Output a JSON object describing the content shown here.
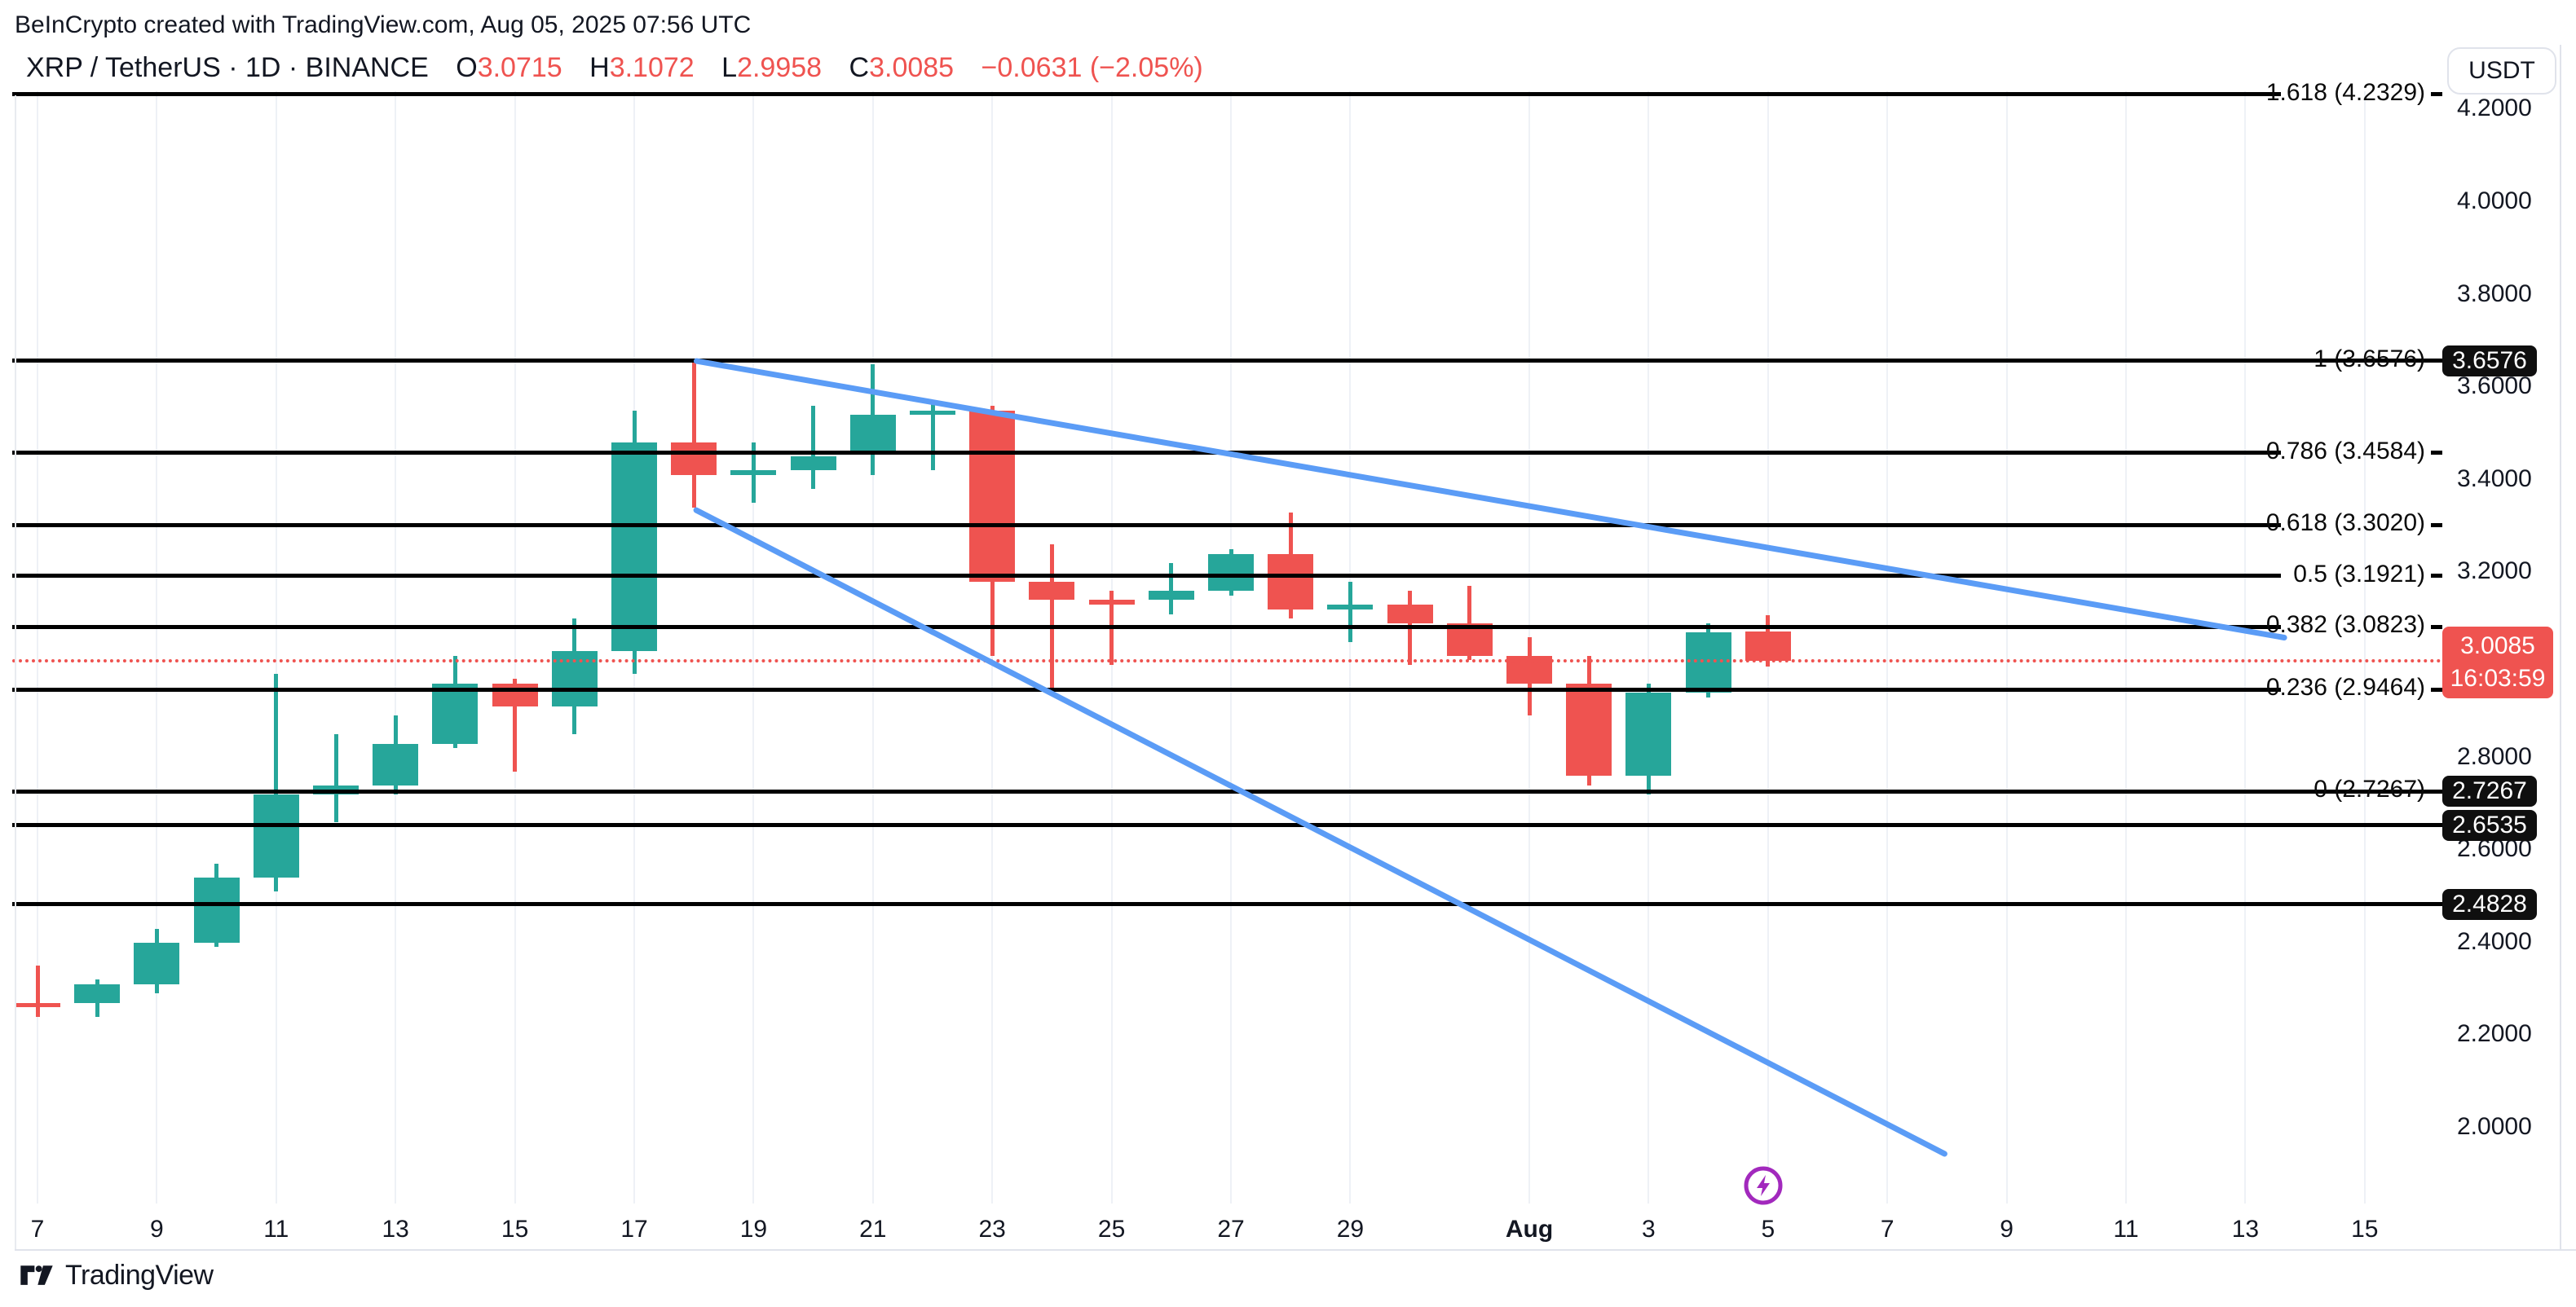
{
  "header": {
    "attribution": "BeInCrypto created with TradingView.com, Aug 05, 2025 07:56 UTC",
    "symbol_title": "XRP / TetherUS · 1D · BINANCE",
    "ohlc": [
      {
        "label": "O",
        "value": "3.0715"
      },
      {
        "label": "H",
        "value": "3.1072"
      },
      {
        "label": "L",
        "value": "2.9958"
      },
      {
        "label": "C",
        "value": "3.0085"
      }
    ],
    "change": "−0.0631 (−2.05%)"
  },
  "price_axis": {
    "currency_label": "USDT",
    "ticks": [
      "4.2000",
      "4.0000",
      "3.8000",
      "3.6000",
      "3.4000",
      "3.2000",
      "2.8000",
      "2.6000",
      "2.4000",
      "2.2000",
      "2.0000"
    ]
  },
  "time_axis": {
    "labels": [
      {
        "text": "7",
        "day": 0,
        "bold": false
      },
      {
        "text": "9",
        "day": 2,
        "bold": false
      },
      {
        "text": "11",
        "day": 4,
        "bold": false
      },
      {
        "text": "13",
        "day": 6,
        "bold": false
      },
      {
        "text": "15",
        "day": 8,
        "bold": false
      },
      {
        "text": "17",
        "day": 10,
        "bold": false
      },
      {
        "text": "19",
        "day": 12,
        "bold": false
      },
      {
        "text": "21",
        "day": 14,
        "bold": false
      },
      {
        "text": "23",
        "day": 16,
        "bold": false
      },
      {
        "text": "25",
        "day": 18,
        "bold": false
      },
      {
        "text": "27",
        "day": 20,
        "bold": false
      },
      {
        "text": "29",
        "day": 22,
        "bold": false
      },
      {
        "text": "Aug",
        "day": 25,
        "bold": true
      },
      {
        "text": "3",
        "day": 27,
        "bold": false
      },
      {
        "text": "5",
        "day": 29,
        "bold": false
      },
      {
        "text": "7",
        "day": 31,
        "bold": false
      },
      {
        "text": "9",
        "day": 33,
        "bold": false
      },
      {
        "text": "11",
        "day": 35,
        "bold": false
      },
      {
        "text": "13",
        "day": 37,
        "bold": false
      },
      {
        "text": "15",
        "day": 39,
        "bold": false
      }
    ]
  },
  "chart_data": {
    "type": "candlestick",
    "symbol": "XRP/USDT",
    "interval": "1D",
    "price_range_visible": [
      2.0,
      4.2329
    ],
    "candles": [
      {
        "date": "Jul 7",
        "o": 2.27,
        "h": 2.35,
        "l": 2.24,
        "c": 2.26
      },
      {
        "date": "Jul 8",
        "o": 2.27,
        "h": 2.32,
        "l": 2.24,
        "c": 2.31
      },
      {
        "date": "Jul 9",
        "o": 2.31,
        "h": 2.43,
        "l": 2.29,
        "c": 2.4
      },
      {
        "date": "Jul 10",
        "o": 2.4,
        "h": 2.57,
        "l": 2.39,
        "c": 2.54
      },
      {
        "date": "Jul 11",
        "o": 2.54,
        "h": 2.98,
        "l": 2.51,
        "c": 2.72
      },
      {
        "date": "Jul 12",
        "o": 2.72,
        "h": 2.85,
        "l": 2.66,
        "c": 2.74
      },
      {
        "date": "Jul 13",
        "o": 2.74,
        "h": 2.89,
        "l": 2.72,
        "c": 2.83
      },
      {
        "date": "Jul 14",
        "o": 2.83,
        "h": 3.02,
        "l": 2.82,
        "c": 2.96
      },
      {
        "date": "Jul 15",
        "o": 2.96,
        "h": 2.97,
        "l": 2.77,
        "c": 2.91
      },
      {
        "date": "Jul 16",
        "o": 2.91,
        "h": 3.1,
        "l": 2.85,
        "c": 3.03
      },
      {
        "date": "Jul 17",
        "o": 3.03,
        "h": 3.55,
        "l": 2.98,
        "c": 3.48
      },
      {
        "date": "Jul 18",
        "o": 3.48,
        "h": 3.6576,
        "l": 3.34,
        "c": 3.41
      },
      {
        "date": "Jul 19",
        "o": 3.41,
        "h": 3.48,
        "l": 3.35,
        "c": 3.42
      },
      {
        "date": "Jul 20",
        "o": 3.42,
        "h": 3.56,
        "l": 3.38,
        "c": 3.45
      },
      {
        "date": "Jul 21",
        "o": 3.46,
        "h": 3.65,
        "l": 3.41,
        "c": 3.54
      },
      {
        "date": "Jul 22",
        "o": 3.54,
        "h": 3.57,
        "l": 3.42,
        "c": 3.55
      },
      {
        "date": "Jul 23",
        "o": 3.55,
        "h": 3.56,
        "l": 3.02,
        "c": 3.18
      },
      {
        "date": "Jul 24",
        "o": 3.18,
        "h": 3.26,
        "l": 2.95,
        "c": 3.14
      },
      {
        "date": "Jul 25",
        "o": 3.14,
        "h": 3.16,
        "l": 3.0,
        "c": 3.13
      },
      {
        "date": "Jul 26",
        "o": 3.14,
        "h": 3.22,
        "l": 3.11,
        "c": 3.16
      },
      {
        "date": "Jul 27",
        "o": 3.16,
        "h": 3.25,
        "l": 3.15,
        "c": 3.24
      },
      {
        "date": "Jul 28",
        "o": 3.24,
        "h": 3.33,
        "l": 3.1,
        "c": 3.12
      },
      {
        "date": "Jul 29",
        "o": 3.12,
        "h": 3.18,
        "l": 3.05,
        "c": 3.13
      },
      {
        "date": "Jul 30",
        "o": 3.13,
        "h": 3.16,
        "l": 3.0,
        "c": 3.09
      },
      {
        "date": "Jul 31",
        "o": 3.09,
        "h": 3.17,
        "l": 3.01,
        "c": 3.02
      },
      {
        "date": "Aug 1",
        "o": 3.02,
        "h": 3.06,
        "l": 2.89,
        "c": 2.96
      },
      {
        "date": "Aug 2",
        "o": 2.96,
        "h": 3.02,
        "l": 2.74,
        "c": 2.76
      },
      {
        "date": "Aug 3",
        "o": 2.76,
        "h": 2.96,
        "l": 2.72,
        "c": 2.94
      },
      {
        "date": "Aug 4",
        "o": 2.94,
        "h": 3.09,
        "l": 2.93,
        "c": 3.07
      },
      {
        "date": "Aug 5",
        "o": 3.0715,
        "h": 3.1072,
        "l": 2.9958,
        "c": 3.0085
      }
    ],
    "fib_levels": [
      {
        "label": "1.618 (4.2329)",
        "value": 4.2329,
        "full_width": false,
        "tag": ""
      },
      {
        "label": "1 (3.6576)",
        "value": 3.6576,
        "full_width": true,
        "tag": "3.6576"
      },
      {
        "label": "0.786 (3.4584)",
        "value": 3.4584,
        "full_width": false,
        "tag": ""
      },
      {
        "label": "0.618 (3.3020)",
        "value": 3.302,
        "full_width": false,
        "tag": ""
      },
      {
        "label": "0.5 (3.1921)",
        "value": 3.1921,
        "full_width": false,
        "tag": ""
      },
      {
        "label": "0.382 (3.0823)",
        "value": 3.0823,
        "full_width": false,
        "tag": ""
      },
      {
        "label": "0.236 (2.9464)",
        "value": 2.9464,
        "full_width": false,
        "tag": ""
      },
      {
        "label": "0 (2.7267)",
        "value": 2.7267,
        "full_width": true,
        "tag": "2.7267"
      },
      {
        "label": "",
        "value": 2.6535,
        "full_width": true,
        "tag": "2.6535"
      },
      {
        "label": "",
        "value": 2.4828,
        "full_width": true,
        "tag": "2.4828"
      }
    ],
    "current_price": {
      "value": 3.0085,
      "countdown": "16:03:59",
      "direction": "down"
    },
    "trendlines": [
      {
        "name": "upper-descending-trendline",
        "d1": 11,
        "p1": 3.6576,
        "d2": 37.7,
        "p2": 3.058
      },
      {
        "name": "lower-descending-trendline",
        "d1": 11,
        "p1": 3.338,
        "d2": 32.0,
        "p2": 1.942
      }
    ],
    "colors": {
      "up": "#26a69a",
      "down": "#ef5350",
      "fib_line": "#000000",
      "trendline": "#5b9cf6",
      "current_price_line": "#ef5350",
      "event": "#a229bd",
      "grid": "#eef1f6",
      "text": "#131722"
    },
    "legend_position": "none",
    "grid": "vertical-faint"
  },
  "event_marker": {
    "icon": "lightning-icon",
    "day": 29
  },
  "footer": {
    "logo_text": "TradingView"
  }
}
